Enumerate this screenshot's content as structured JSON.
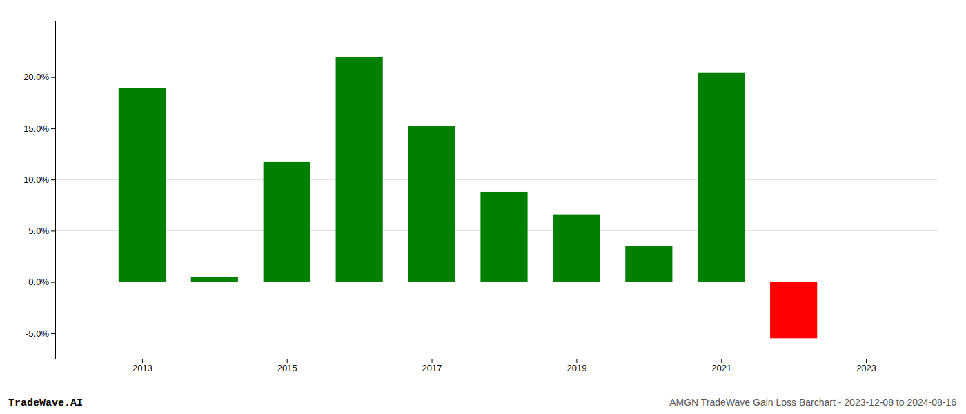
{
  "chart_data": {
    "type": "bar",
    "title": "AMGN TradeWave Gain Loss Barchart - 2023-12-08 to 2024-08-16",
    "annotations": [
      "TradeWave.AI"
    ],
    "x": [
      2013,
      2014,
      2015,
      2016,
      2017,
      2018,
      2019,
      2020,
      2021,
      2022
    ],
    "values": [
      0.189,
      0.005,
      0.117,
      0.22,
      0.152,
      0.088,
      0.066,
      0.035,
      0.204,
      -0.055
    ],
    "colors": [
      "#008000",
      "#008000",
      "#008000",
      "#008000",
      "#008000",
      "#008000",
      "#008000",
      "#008000",
      "#008000",
      "#ff0000"
    ],
    "xlim": [
      2011.8,
      2024.0
    ],
    "xticks": [
      2013,
      2015,
      2017,
      2019,
      2021,
      2023
    ],
    "ylim": [
      -0.075,
      0.255
    ],
    "yticks": [
      {
        "value": -0.05,
        "label": "-5.0%"
      },
      {
        "value": 0.0,
        "label": "0.0%"
      },
      {
        "value": 0.05,
        "label": "5.0%"
      },
      {
        "value": 0.1,
        "label": "10.0%"
      },
      {
        "value": 0.15,
        "label": "15.0%"
      },
      {
        "value": 0.2,
        "label": "20.0%"
      }
    ],
    "grid": true
  }
}
